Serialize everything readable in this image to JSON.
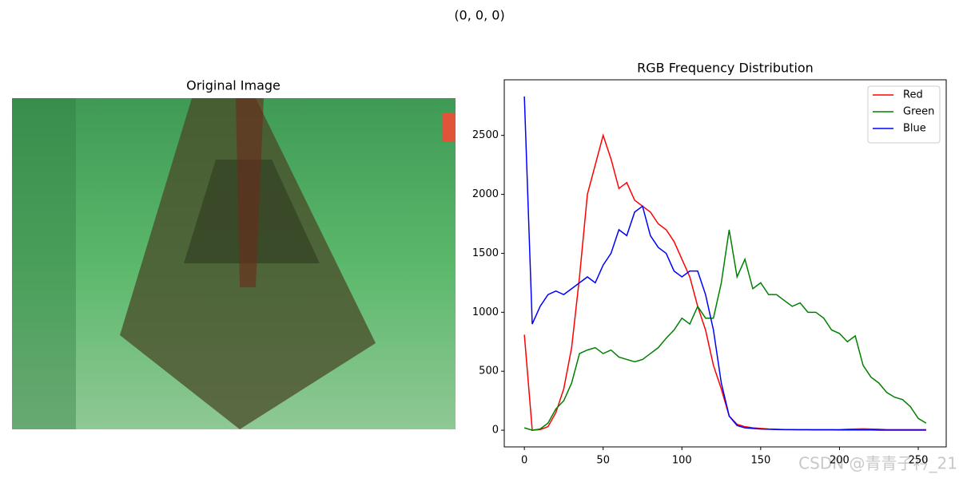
{
  "suptitle": "(0, 0, 0)",
  "image_panel": {
    "title": "Original Image"
  },
  "watermark": "CSDN @青青子衿_21",
  "chart_data": {
    "type": "line",
    "title": "RGB Frequency Distribution",
    "x": [
      0,
      5,
      10,
      15,
      20,
      25,
      30,
      35,
      40,
      45,
      50,
      55,
      60,
      65,
      70,
      75,
      80,
      85,
      90,
      95,
      100,
      105,
      110,
      115,
      120,
      125,
      130,
      135,
      140,
      145,
      150,
      155,
      160,
      165,
      170,
      175,
      180,
      185,
      190,
      195,
      200,
      205,
      210,
      215,
      220,
      225,
      230,
      235,
      240,
      245,
      250,
      255
    ],
    "series": [
      {
        "name": "Red",
        "color": "#ff0000",
        "values": [
          810,
          0,
          5,
          30,
          150,
          350,
          700,
          1300,
          2000,
          2250,
          2500,
          2300,
          2050,
          2100,
          1950,
          1900,
          1850,
          1750,
          1700,
          1600,
          1450,
          1300,
          1050,
          850,
          550,
          350,
          120,
          50,
          30,
          20,
          15,
          10,
          8,
          6,
          5,
          5,
          5,
          5,
          5,
          5,
          5,
          8,
          10,
          12,
          10,
          8,
          5,
          5,
          5,
          5,
          5,
          5
        ]
      },
      {
        "name": "Green",
        "color": "#008000",
        "values": [
          20,
          0,
          10,
          60,
          180,
          250,
          400,
          650,
          680,
          700,
          650,
          680,
          620,
          600,
          580,
          600,
          650,
          700,
          780,
          850,
          950,
          900,
          1050,
          950,
          950,
          1250,
          1700,
          1300,
          1450,
          1200,
          1250,
          1150,
          1150,
          1100,
          1050,
          1080,
          1000,
          1000,
          950,
          850,
          820,
          750,
          800,
          550,
          450,
          400,
          320,
          280,
          260,
          200,
          100,
          60
        ]
      },
      {
        "name": "Blue",
        "color": "#0000ff",
        "values": [
          2830,
          900,
          1050,
          1150,
          1180,
          1150,
          1200,
          1250,
          1300,
          1250,
          1400,
          1500,
          1700,
          1650,
          1850,
          1900,
          1650,
          1550,
          1500,
          1350,
          1300,
          1350,
          1350,
          1150,
          850,
          400,
          120,
          40,
          20,
          15,
          10,
          8,
          6,
          5,
          5,
          4,
          4,
          3,
          3,
          3,
          2,
          2,
          2,
          2,
          2,
          1,
          1,
          1,
          1,
          1,
          1,
          1
        ]
      }
    ],
    "xlim": [
      -12.75,
      267.75
    ],
    "xticks": [
      0,
      50,
      100,
      150,
      200,
      250
    ],
    "ylim": [
      -141.5,
      2971.5
    ],
    "yticks": [
      0,
      500,
      1000,
      1500,
      2000,
      2500
    ],
    "legend": "upper right"
  }
}
